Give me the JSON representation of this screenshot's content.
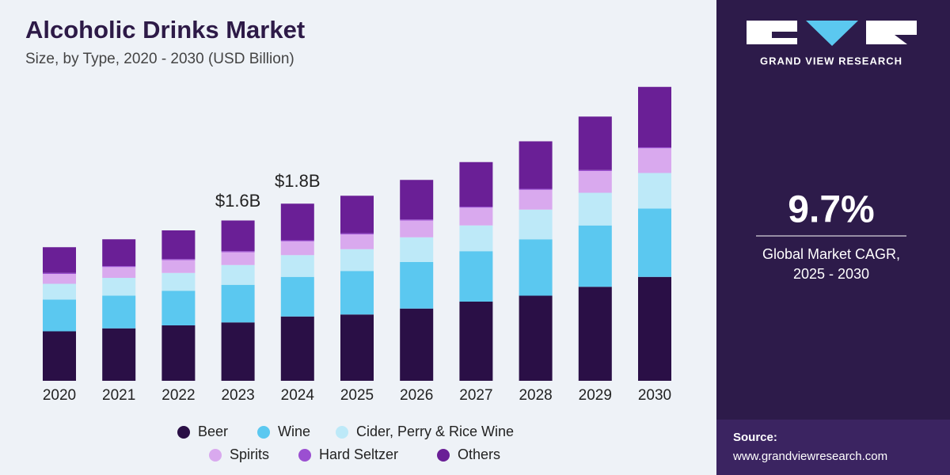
{
  "chart_data": {
    "type": "stacked-bar",
    "title": "Alcoholic Drinks Market",
    "subtitle": "Size, by Type, 2020 - 2030 (USD Billion)",
    "categories": [
      "2020",
      "2021",
      "2022",
      "2023",
      "2024",
      "2025",
      "2026",
      "2027",
      "2028",
      "2029",
      "2030"
    ],
    "series": [
      {
        "name": "Beer",
        "color": "#2a0f46",
        "values": [
          0.5,
          0.53,
          0.56,
          0.59,
          0.65,
          0.67,
          0.73,
          0.8,
          0.86,
          0.95,
          1.05
        ]
      },
      {
        "name": "Wine",
        "color": "#5bc8f0",
        "values": [
          0.32,
          0.33,
          0.35,
          0.38,
          0.4,
          0.44,
          0.47,
          0.51,
          0.57,
          0.62,
          0.69
        ]
      },
      {
        "name": "Cider, Perry & Rice Wine",
        "color": "#bde9f8",
        "values": [
          0.16,
          0.18,
          0.18,
          0.2,
          0.22,
          0.22,
          0.25,
          0.26,
          0.3,
          0.33,
          0.36
        ]
      },
      {
        "name": "Spirits",
        "color": "#d9a9ee",
        "values": [
          0.1,
          0.11,
          0.13,
          0.13,
          0.14,
          0.15,
          0.17,
          0.18,
          0.2,
          0.22,
          0.25
        ]
      },
      {
        "name": "Hard Seltzer",
        "color": "#9b4fd1",
        "values": [
          0.01,
          0.01,
          0.01,
          0.01,
          0.01,
          0.01,
          0.01,
          0.01,
          0.01,
          0.01,
          0.01
        ]
      },
      {
        "name": "Others",
        "color": "#6a1f96",
        "values": [
          0.26,
          0.27,
          0.29,
          0.31,
          0.37,
          0.38,
          0.4,
          0.45,
          0.48,
          0.54,
          0.61
        ]
      }
    ],
    "annotations": [
      {
        "x": "2023",
        "value": 1.6,
        "label": "$1.6B"
      },
      {
        "x": "2024",
        "value": 1.8,
        "label": "$1.8B"
      }
    ]
  },
  "panel": {
    "brand": "GRAND VIEW RESEARCH",
    "cagr": "9.7%",
    "cagr_caption": [
      "Global Market CAGR,",
      "2025 - 2030"
    ],
    "source_label": "Source:",
    "source_url": "www.grandviewresearch.com"
  }
}
